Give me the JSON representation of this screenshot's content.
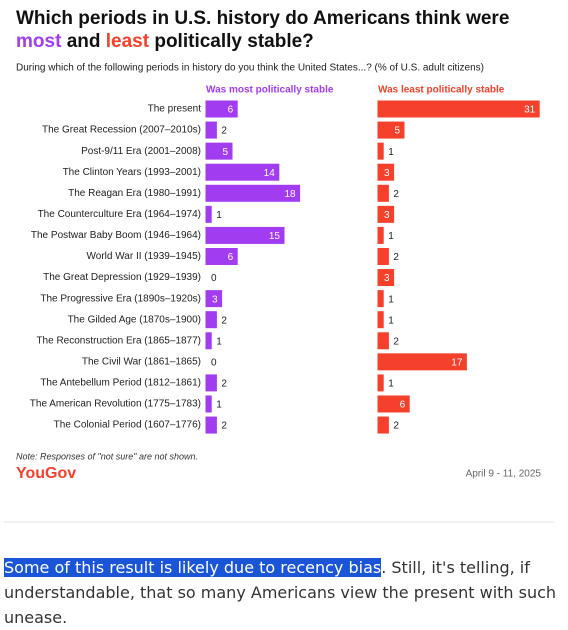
{
  "chart_data": {
    "type": "bar",
    "title": [
      "Which periods in U.S. history do Americans think were",
      "most",
      "and",
      "least",
      "politically stable?"
    ],
    "subtitle": "During which of the following periods in history do you think the United States...? (% of U.S. adult citizens)",
    "categories": [
      "The present",
      "The Great Recession (2007–2010s)",
      "Post-9/11 Era (2001–2008)",
      "The Clinton Years (1993–2001)",
      "The Reagan Era (1980–1991)",
      "The Counterculture Era (1964–1974)",
      "The Postwar Baby Boom (1946–1964)",
      "World War II (1939–1945)",
      "The Great Depression (1929–1939)",
      "The Progressive Era (1890s–1920s)",
      "The Gilded Age (1870s–1900)",
      "The Reconstruction Era (1865–1877)",
      "The Civil War (1861–1865)",
      "The Antebellum Period (1812–1861)",
      "The American Revolution (1775–1783)",
      "The Colonial Period (1607–1776)"
    ],
    "series": [
      {
        "name": "Was most politically stable",
        "color": "#a23cf0",
        "values": [
          6,
          2,
          5,
          14,
          18,
          1,
          15,
          6,
          0,
          3,
          2,
          1,
          0,
          2,
          1,
          2
        ]
      },
      {
        "name": "Was least politically stable",
        "color": "#f5402c",
        "values": [
          31,
          5,
          1,
          3,
          2,
          3,
          1,
          2,
          3,
          1,
          1,
          2,
          17,
          1,
          6,
          2
        ]
      }
    ],
    "note": "Note: Responses of \"not sure\" are not shown.",
    "source": "YouGov",
    "date": "April 9 - 11, 2025"
  },
  "article": {
    "highlight": "Some of this result is likely due to recency bias",
    "text": ". Still, it's telling, if understandable, that so many Americans view the present with such unease."
  }
}
